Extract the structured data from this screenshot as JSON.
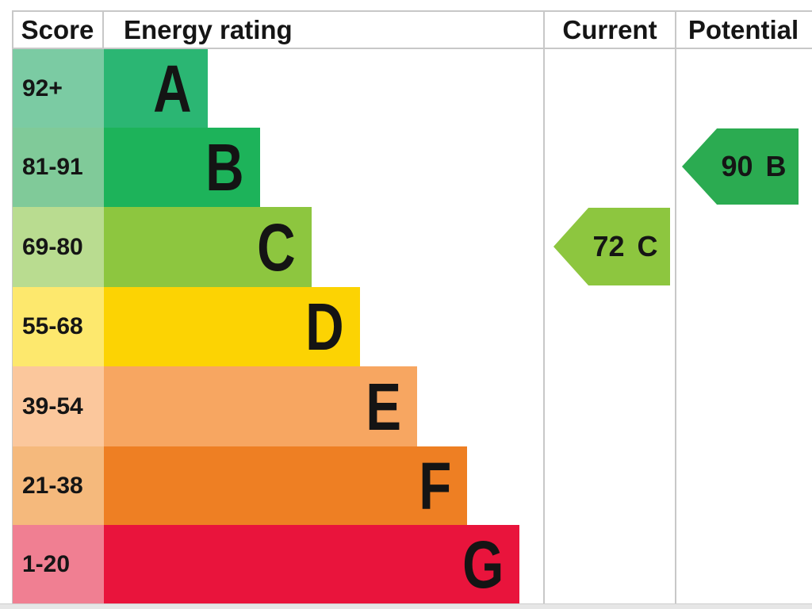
{
  "header": {
    "score": "Score",
    "energy_rating": "Energy rating",
    "current": "Current",
    "potential": "Potential"
  },
  "chart_data": {
    "type": "bar",
    "variant": "epc-energy-rating-chart",
    "title": "Energy rating",
    "orientation": "horizontal",
    "categories": [
      "A",
      "B",
      "C",
      "D",
      "E",
      "F",
      "G"
    ],
    "bands": [
      {
        "letter": "A",
        "score_range": "92+",
        "bar_color": "#2bb673",
        "score_cell_color": "#7bcba3"
      },
      {
        "letter": "B",
        "score_range": "81-91",
        "bar_color": "#1db35a",
        "score_cell_color": "#80ca99"
      },
      {
        "letter": "C",
        "score_range": "69-80",
        "bar_color": "#8dc63f",
        "score_cell_color": "#b9dc90"
      },
      {
        "letter": "D",
        "score_range": "55-68",
        "bar_color": "#fcd303",
        "score_cell_color": "#fde86d"
      },
      {
        "letter": "E",
        "score_range": "39-54",
        "bar_color": "#f7a661",
        "score_cell_color": "#fbc79c"
      },
      {
        "letter": "F",
        "score_range": "21-38",
        "bar_color": "#ee7f23",
        "score_cell_color": "#f5b97c"
      },
      {
        "letter": "G",
        "score_range": "1-20",
        "bar_color": "#e9143c",
        "score_cell_color": "#f07f92"
      }
    ],
    "current": {
      "value": "72",
      "band": "C",
      "arrow_color": "#8dc63f"
    },
    "potential": {
      "value": "90",
      "band": "B",
      "arrow_color": "#2bab51"
    },
    "colors": {
      "grid_line": "#c8c8c8",
      "text": "#151515",
      "background": "#ffffff"
    }
  }
}
